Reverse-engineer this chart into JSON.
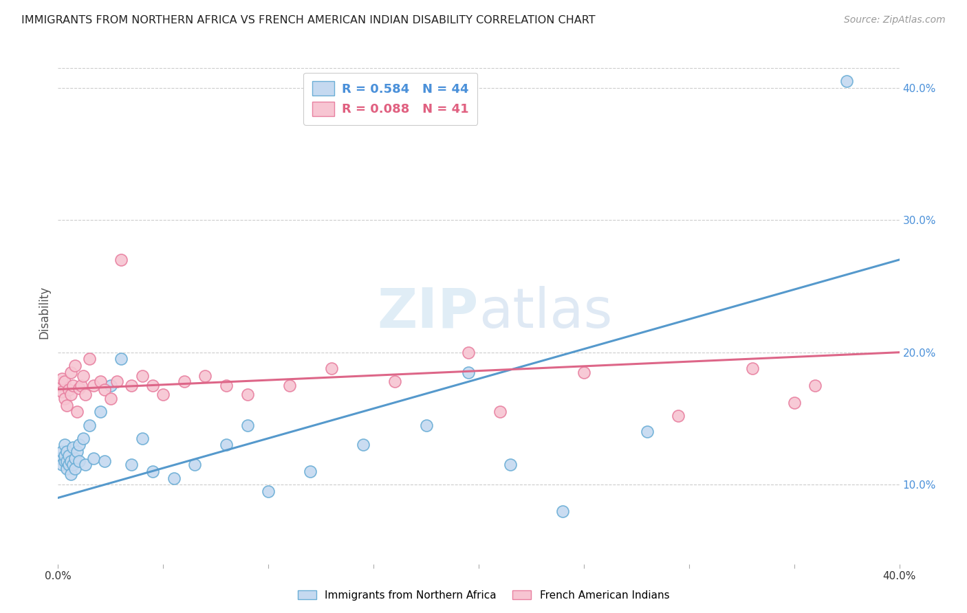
{
  "title": "IMMIGRANTS FROM NORTHERN AFRICA VS FRENCH AMERICAN INDIAN DISABILITY CORRELATION CHART",
  "source": "Source: ZipAtlas.com",
  "ylabel": "Disability",
  "x_min": 0.0,
  "x_max": 0.4,
  "y_min": 0.04,
  "y_max": 0.42,
  "y_ticks": [
    0.1,
    0.2,
    0.3,
    0.4
  ],
  "y_tick_labels": [
    "10.0%",
    "20.0%",
    "30.0%",
    "40.0%"
  ],
  "x_ticks": [
    0.0,
    0.05,
    0.1,
    0.15,
    0.2,
    0.25,
    0.3,
    0.35,
    0.4
  ],
  "x_tick_labels": [
    "0.0%",
    "",
    "",
    "",
    "",
    "",
    "",
    "",
    "40.0%"
  ],
  "blue_R": 0.584,
  "blue_N": 44,
  "pink_R": 0.088,
  "pink_N": 41,
  "blue_fill_color": "#c5d9f0",
  "pink_fill_color": "#f7c5d2",
  "blue_edge_color": "#6baed6",
  "pink_edge_color": "#e880a0",
  "blue_line_color": "#5599cc",
  "pink_line_color": "#dd6688",
  "legend_text_blue": "#4a90d9",
  "legend_text_pink": "#e06080",
  "watermark_color": "#cce4f0",
  "blue_line_x": [
    0.0,
    0.4
  ],
  "blue_line_y": [
    0.09,
    0.27
  ],
  "pink_line_x": [
    0.0,
    0.4
  ],
  "pink_line_y": [
    0.172,
    0.2
  ],
  "blue_scatter_x": [
    0.001,
    0.002,
    0.002,
    0.003,
    0.003,
    0.003,
    0.004,
    0.004,
    0.004,
    0.005,
    0.005,
    0.006,
    0.006,
    0.007,
    0.007,
    0.008,
    0.008,
    0.009,
    0.01,
    0.01,
    0.012,
    0.013,
    0.015,
    0.017,
    0.02,
    0.022,
    0.025,
    0.03,
    0.035,
    0.04,
    0.045,
    0.055,
    0.065,
    0.08,
    0.09,
    0.1,
    0.12,
    0.145,
    0.175,
    0.195,
    0.215,
    0.24,
    0.28,
    0.375
  ],
  "blue_scatter_y": [
    0.12,
    0.115,
    0.125,
    0.118,
    0.122,
    0.13,
    0.112,
    0.118,
    0.125,
    0.115,
    0.122,
    0.108,
    0.118,
    0.115,
    0.128,
    0.12,
    0.112,
    0.125,
    0.118,
    0.13,
    0.135,
    0.115,
    0.145,
    0.12,
    0.155,
    0.118,
    0.175,
    0.195,
    0.115,
    0.135,
    0.11,
    0.105,
    0.115,
    0.13,
    0.145,
    0.095,
    0.11,
    0.13,
    0.145,
    0.185,
    0.115,
    0.08,
    0.14,
    0.405
  ],
  "pink_scatter_x": [
    0.001,
    0.002,
    0.002,
    0.003,
    0.003,
    0.004,
    0.005,
    0.006,
    0.006,
    0.007,
    0.008,
    0.009,
    0.01,
    0.011,
    0.012,
    0.013,
    0.015,
    0.017,
    0.02,
    0.022,
    0.025,
    0.028,
    0.03,
    0.035,
    0.04,
    0.045,
    0.05,
    0.06,
    0.07,
    0.08,
    0.09,
    0.11,
    0.13,
    0.16,
    0.195,
    0.21,
    0.25,
    0.295,
    0.33,
    0.35,
    0.36
  ],
  "pink_scatter_y": [
    0.175,
    0.17,
    0.18,
    0.165,
    0.178,
    0.16,
    0.172,
    0.185,
    0.168,
    0.175,
    0.19,
    0.155,
    0.173,
    0.175,
    0.182,
    0.168,
    0.195,
    0.175,
    0.178,
    0.172,
    0.165,
    0.178,
    0.27,
    0.175,
    0.182,
    0.175,
    0.168,
    0.178,
    0.182,
    0.175,
    0.168,
    0.175,
    0.188,
    0.178,
    0.2,
    0.155,
    0.185,
    0.152,
    0.188,
    0.162,
    0.175
  ]
}
